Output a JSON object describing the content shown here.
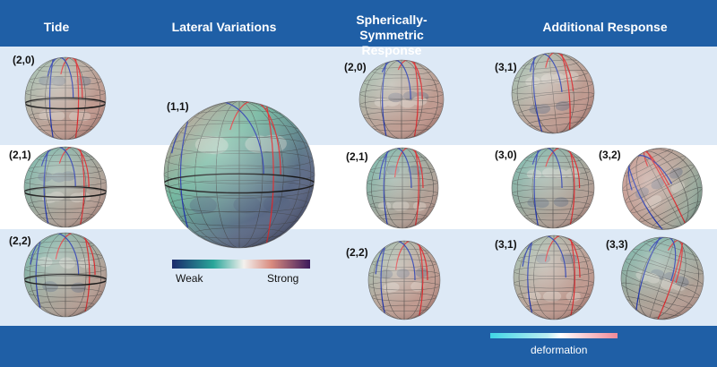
{
  "headers": {
    "tide": "Tide",
    "lateral": "Lateral Variations",
    "spherical": "Spherically-Symmetric Response",
    "additional": "Additional Response"
  },
  "labels": {
    "tide_20": "(2,0)",
    "tide_21": "(2,1)",
    "tide_22": "(2,2)",
    "lat_11": "(1,1)",
    "sph_20": "(2,0)",
    "sph_21": "(2,1)",
    "sph_22": "(2,2)",
    "add_31a": "(3,1)",
    "add_30": "(3,0)",
    "add_32": "(3,2)",
    "add_31b": "(3,1)",
    "add_33": "(3,3)"
  },
  "colorbar": {
    "weak": "Weak",
    "strong": "Strong"
  },
  "deformation": {
    "label": "deformation"
  },
  "colors": {
    "header": "#1f5fa6",
    "light_band": "#dde9f6",
    "weak": "#1a2a6c",
    "mid": "#2aa69a",
    "neutral": "#f3f1ee",
    "strong_a": "#d98b7f",
    "strong_b": "#3c1a5b",
    "def_cyan": "#3fd6e6",
    "def_pink": "#f08a98"
  }
}
